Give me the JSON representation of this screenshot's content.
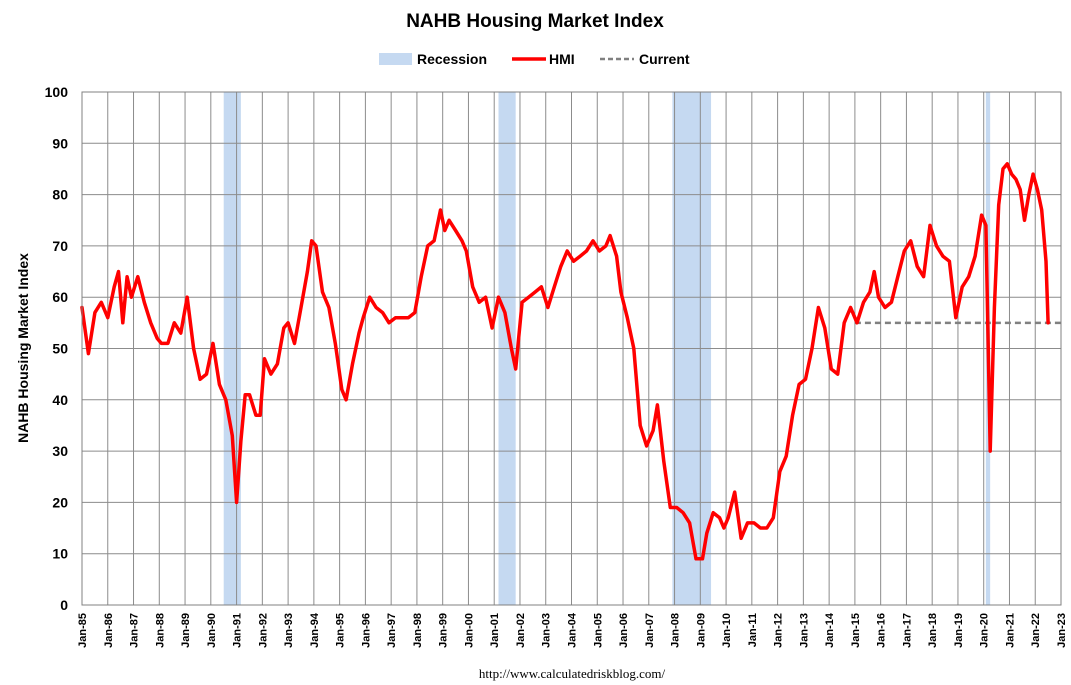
{
  "chart_data": {
    "type": "line",
    "title": "NAHB Housing Market Index",
    "ylabel": "NAHB Housing Market Index",
    "xlabel": "",
    "ylim": [
      0,
      100
    ],
    "yticks": [
      0,
      10,
      20,
      30,
      40,
      50,
      60,
      70,
      80,
      90,
      100
    ],
    "xlim": [
      "1985-01",
      "2023-01"
    ],
    "xtick_labels": [
      "Jan-85",
      "Jan-86",
      "Jan-87",
      "Jan-88",
      "Jan-89",
      "Jan-90",
      "Jan-91",
      "Jan-92",
      "Jan-93",
      "Jan-94",
      "Jan-95",
      "Jan-96",
      "Jan-97",
      "Jan-98",
      "Jan-99",
      "Jan-00",
      "Jan-01",
      "Jan-02",
      "Jan-03",
      "Jan-04",
      "Jan-05",
      "Jan-06",
      "Jan-07",
      "Jan-08",
      "Jan-09",
      "Jan-10",
      "Jan-11",
      "Jan-12",
      "Jan-13",
      "Jan-14",
      "Jan-15",
      "Jan-16",
      "Jan-17",
      "Jan-18",
      "Jan-19",
      "Jan-20",
      "Jan-21",
      "Jan-22",
      "Jan-23"
    ],
    "grid": true,
    "legend": {
      "position": "top",
      "entries": [
        {
          "label": "Recession",
          "kind": "band",
          "color": "#c5d9f1"
        },
        {
          "label": "HMI",
          "kind": "line",
          "color": "#ff0000"
        },
        {
          "label": "Current",
          "kind": "dashed",
          "color": "#808080"
        }
      ]
    },
    "recessions": [
      [
        "1990-07",
        "1991-03"
      ],
      [
        "2001-03",
        "2001-11"
      ],
      [
        "2007-12",
        "2009-06"
      ],
      [
        "2020-02",
        "2020-04"
      ]
    ],
    "current": {
      "value": 55,
      "from": "2015-01",
      "to": "2023-01"
    },
    "series": [
      {
        "name": "HMI",
        "color": "#ff0000",
        "points": [
          [
            "1985-01",
            58
          ],
          [
            "1985-04",
            49
          ],
          [
            "1985-07",
            57
          ],
          [
            "1985-10",
            59
          ],
          [
            "1986-01",
            56
          ],
          [
            "1986-04",
            62
          ],
          [
            "1986-06",
            65
          ],
          [
            "1986-08",
            55
          ],
          [
            "1986-10",
            64
          ],
          [
            "1986-12",
            60
          ],
          [
            "1987-03",
            64
          ],
          [
            "1987-06",
            59
          ],
          [
            "1987-09",
            55
          ],
          [
            "1987-12",
            52
          ],
          [
            "1988-02",
            51
          ],
          [
            "1988-05",
            51
          ],
          [
            "1988-08",
            55
          ],
          [
            "1988-11",
            53
          ],
          [
            "1989-02",
            60
          ],
          [
            "1989-05",
            50
          ],
          [
            "1989-08",
            44
          ],
          [
            "1989-11",
            45
          ],
          [
            "1990-02",
            51
          ],
          [
            "1990-05",
            43
          ],
          [
            "1990-08",
            40
          ],
          [
            "1990-11",
            33
          ],
          [
            "1991-01",
            20
          ],
          [
            "1991-03",
            32
          ],
          [
            "1991-05",
            41
          ],
          [
            "1991-07",
            41
          ],
          [
            "1991-10",
            37
          ],
          [
            "1991-12",
            37
          ],
          [
            "1992-02",
            48
          ],
          [
            "1992-05",
            45
          ],
          [
            "1992-08",
            47
          ],
          [
            "1992-11",
            54
          ],
          [
            "1993-01",
            55
          ],
          [
            "1993-04",
            51
          ],
          [
            "1993-07",
            58
          ],
          [
            "1993-10",
            65
          ],
          [
            "1993-12",
            71
          ],
          [
            "1994-02",
            70
          ],
          [
            "1994-05",
            61
          ],
          [
            "1994-08",
            58
          ],
          [
            "1994-11",
            51
          ],
          [
            "1994-12",
            48
          ],
          [
            "1995-02",
            42
          ],
          [
            "1995-04",
            40
          ],
          [
            "1995-07",
            47
          ],
          [
            "1995-10",
            53
          ],
          [
            "1995-12",
            56
          ],
          [
            "1996-03",
            60
          ],
          [
            "1996-06",
            58
          ],
          [
            "1996-09",
            57
          ],
          [
            "1996-12",
            55
          ],
          [
            "1997-03",
            56
          ],
          [
            "1997-06",
            56
          ],
          [
            "1997-09",
            56
          ],
          [
            "1997-12",
            57
          ],
          [
            "1998-03",
            64
          ],
          [
            "1998-06",
            70
          ],
          [
            "1998-09",
            71
          ],
          [
            "1998-12",
            77
          ],
          [
            "1999-02",
            73
          ],
          [
            "1999-04",
            75
          ],
          [
            "1999-07",
            73
          ],
          [
            "1999-10",
            71
          ],
          [
            "1999-12",
            69
          ],
          [
            "2000-03",
            62
          ],
          [
            "2000-06",
            59
          ],
          [
            "2000-09",
            60
          ],
          [
            "2000-12",
            54
          ],
          [
            "2001-03",
            60
          ],
          [
            "2001-06",
            57
          ],
          [
            "2001-09",
            50
          ],
          [
            "2001-11",
            46
          ],
          [
            "2002-02",
            59
          ],
          [
            "2002-05",
            60
          ],
          [
            "2002-08",
            61
          ],
          [
            "2002-11",
            62
          ],
          [
            "2003-02",
            58
          ],
          [
            "2003-05",
            62
          ],
          [
            "2003-08",
            66
          ],
          [
            "2003-11",
            69
          ],
          [
            "2004-02",
            67
          ],
          [
            "2004-05",
            68
          ],
          [
            "2004-08",
            69
          ],
          [
            "2004-11",
            71
          ],
          [
            "2005-02",
            69
          ],
          [
            "2005-05",
            70
          ],
          [
            "2005-07",
            72
          ],
          [
            "2005-10",
            68
          ],
          [
            "2005-12",
            61
          ],
          [
            "2006-03",
            56
          ],
          [
            "2006-06",
            50
          ],
          [
            "2006-09",
            35
          ],
          [
            "2006-12",
            31
          ],
          [
            "2007-03",
            34
          ],
          [
            "2007-05",
            39
          ],
          [
            "2007-08",
            28
          ],
          [
            "2007-11",
            19
          ],
          [
            "2008-02",
            19
          ],
          [
            "2008-05",
            18
          ],
          [
            "2008-08",
            16
          ],
          [
            "2008-11",
            9
          ],
          [
            "2009-02",
            9
          ],
          [
            "2009-04",
            14
          ],
          [
            "2009-07",
            18
          ],
          [
            "2009-10",
            17
          ],
          [
            "2009-12",
            15
          ],
          [
            "2010-02",
            17
          ],
          [
            "2010-05",
            22
          ],
          [
            "2010-08",
            13
          ],
          [
            "2010-11",
            16
          ],
          [
            "2011-02",
            16
          ],
          [
            "2011-05",
            15
          ],
          [
            "2011-08",
            15
          ],
          [
            "2011-11",
            17
          ],
          [
            "2012-02",
            26
          ],
          [
            "2012-05",
            29
          ],
          [
            "2012-08",
            37
          ],
          [
            "2012-11",
            43
          ],
          [
            "2013-02",
            44
          ],
          [
            "2013-05",
            50
          ],
          [
            "2013-08",
            58
          ],
          [
            "2013-11",
            54
          ],
          [
            "2014-02",
            46
          ],
          [
            "2014-05",
            45
          ],
          [
            "2014-08",
            55
          ],
          [
            "2014-11",
            58
          ],
          [
            "2015-02",
            55
          ],
          [
            "2015-05",
            59
          ],
          [
            "2015-08",
            61
          ],
          [
            "2015-10",
            65
          ],
          [
            "2015-12",
            60
          ],
          [
            "2016-03",
            58
          ],
          [
            "2016-06",
            59
          ],
          [
            "2016-09",
            64
          ],
          [
            "2016-12",
            69
          ],
          [
            "2017-03",
            71
          ],
          [
            "2017-06",
            66
          ],
          [
            "2017-09",
            64
          ],
          [
            "2017-12",
            74
          ],
          [
            "2018-03",
            70
          ],
          [
            "2018-06",
            68
          ],
          [
            "2018-09",
            67
          ],
          [
            "2018-12",
            56
          ],
          [
            "2019-03",
            62
          ],
          [
            "2019-06",
            64
          ],
          [
            "2019-09",
            68
          ],
          [
            "2019-12",
            76
          ],
          [
            "2020-02",
            74
          ],
          [
            "2020-04",
            30
          ],
          [
            "2020-06",
            58
          ],
          [
            "2020-08",
            78
          ],
          [
            "2020-10",
            85
          ],
          [
            "2020-12",
            86
          ],
          [
            "2021-02",
            84
          ],
          [
            "2021-04",
            83
          ],
          [
            "2021-06",
            81
          ],
          [
            "2021-08",
            75
          ],
          [
            "2021-10",
            80
          ],
          [
            "2021-12",
            84
          ],
          [
            "2022-02",
            81
          ],
          [
            "2022-04",
            77
          ],
          [
            "2022-06",
            67
          ],
          [
            "2022-07",
            55
          ]
        ]
      }
    ]
  },
  "source_text": "http://www.calculatedriskblog.com/"
}
